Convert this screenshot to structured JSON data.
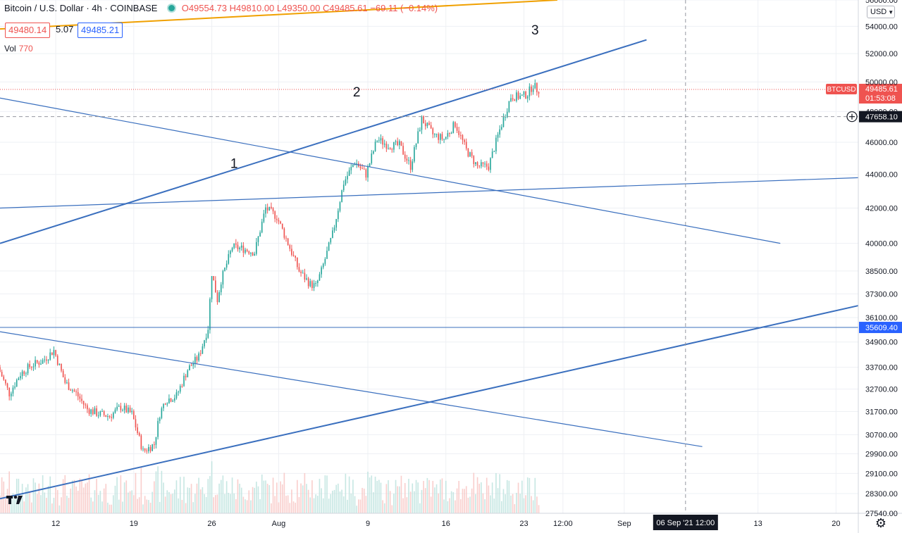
{
  "header": {
    "symbol_title": "Bitcoin / U.S. Dollar · 4h · COINBASE",
    "open": "O49554.73",
    "high": "H49810.00",
    "low": "L49350.00",
    "close": "C49485.61",
    "change": "−69.11 (−0.14%)",
    "bid": "49480.14",
    "spread": "5.07",
    "ask": "49485.21",
    "volume_label": "Vol",
    "volume_value": "770"
  },
  "currency_selector": "USD",
  "icons": {
    "logo": "tradingview-logo-icon",
    "settings": "gear-icon",
    "crosshair_add": "plus-circle-icon"
  },
  "colors": {
    "up": "#26a69a",
    "down": "#ef5350",
    "trendline": "#3a6fbe",
    "orange_line": "#f0a000",
    "price_tag": "#ef5350",
    "horizontal_tag": "#2962ff"
  },
  "annotations": [
    "1",
    "2",
    "3"
  ],
  "price_axis": {
    "ticks": [
      "54000.00",
      "52000.00",
      "50000.00",
      "48000.00",
      "46000.00",
      "44000.00",
      "42000.00",
      "40000.00",
      "38500.00",
      "37300.00",
      "36100.00",
      "34900.00",
      "33700.00",
      "32700.00",
      "31700.00",
      "30700.00",
      "29900.00",
      "29100.00",
      "28300.00",
      "27540.00"
    ],
    "top_partial_tick": "56000.00",
    "last_price_label": "BTCUSD",
    "last_price": "49485.61",
    "countdown": "01:53:08",
    "crosshair_price": "47658.10",
    "horizontal_line_price": "35609.40"
  },
  "time_axis": {
    "ticks": [
      "12",
      "19",
      "26",
      "Aug",
      "9",
      "16",
      "23",
      "12:00",
      "Sep",
      "13",
      "20"
    ],
    "crosshair_label": "06 Sep '21   12:00"
  },
  "chart_data": {
    "type": "candlestick",
    "symbol": "BTCUSD",
    "interval": "4h",
    "exchange": "COINBASE",
    "x_range": [
      "2021-07-07",
      "2021-09-22"
    ],
    "y_scale": "log",
    "ylim": [
      27540,
      56000
    ],
    "grid": true,
    "path_anchors_date_price": [
      [
        "2021-07-07 00:00",
        33700
      ],
      [
        "2021-07-08 00:00",
        32500
      ],
      [
        "2021-07-09 00:00",
        33400
      ],
      [
        "2021-07-10 00:00",
        33800
      ],
      [
        "2021-07-11 00:00",
        34000
      ],
      [
        "2021-07-12 00:00",
        34500
      ],
      [
        "2021-07-13 00:00",
        33000
      ],
      [
        "2021-07-14 00:00",
        32500
      ],
      [
        "2021-07-15 00:00",
        31800
      ],
      [
        "2021-07-16 00:00",
        31600
      ],
      [
        "2021-07-17 00:00",
        31500
      ],
      [
        "2021-07-18 00:00",
        31900
      ],
      [
        "2021-07-19 00:00",
        31600
      ],
      [
        "2021-07-20 00:00",
        30000
      ],
      [
        "2021-07-21 00:00",
        30300
      ],
      [
        "2021-07-21 12:00",
        31600
      ],
      [
        "2021-07-22 00:00",
        32200
      ],
      [
        "2021-07-23 00:00",
        32400
      ],
      [
        "2021-07-24 00:00",
        33600
      ],
      [
        "2021-07-25 00:00",
        34200
      ],
      [
        "2021-07-25 20:00",
        35600
      ],
      [
        "2021-07-26 04:00",
        38400
      ],
      [
        "2021-07-26 16:00",
        37000
      ],
      [
        "2021-07-27 00:00",
        38000
      ],
      [
        "2021-07-28 00:00",
        39800
      ],
      [
        "2021-07-29 00:00",
        39700
      ],
      [
        "2021-07-30 00:00",
        39500
      ],
      [
        "2021-07-31 00:00",
        42000
      ],
      [
        "2021-08-01 00:00",
        41500
      ],
      [
        "2021-08-02 00:00",
        40000
      ],
      [
        "2021-08-03 00:00",
        38500
      ],
      [
        "2021-08-04 00:00",
        37800
      ],
      [
        "2021-08-04 12:00",
        37700
      ],
      [
        "2021-08-05 00:00",
        38500
      ],
      [
        "2021-08-06 00:00",
        40500
      ],
      [
        "2021-08-07 00:00",
        43500
      ],
      [
        "2021-08-08 00:00",
        44800
      ],
      [
        "2021-08-09 00:00",
        44000
      ],
      [
        "2021-08-10 00:00",
        46200
      ],
      [
        "2021-08-11 00:00",
        45800
      ],
      [
        "2021-08-12 00:00",
        45800
      ],
      [
        "2021-08-13 00:00",
        44500
      ],
      [
        "2021-08-14 00:00",
        47500
      ],
      [
        "2021-08-15 00:00",
        46500
      ],
      [
        "2021-08-16 00:00",
        46200
      ],
      [
        "2021-08-17 00:00",
        47200
      ],
      [
        "2021-08-18 00:00",
        45500
      ],
      [
        "2021-08-19 00:00",
        44500
      ],
      [
        "2021-08-20 00:00",
        44500
      ],
      [
        "2021-08-21 00:00",
        46800
      ],
      [
        "2021-08-22 00:00",
        49000
      ],
      [
        "2021-08-23 00:00",
        49000
      ],
      [
        "2021-08-23 12:00",
        49200
      ],
      [
        "2021-08-24 00:00",
        49800
      ],
      [
        "2021-08-24 08:00",
        49485
      ]
    ],
    "drawings": [
      {
        "name": "rising-channel-top",
        "from": [
          "2021-07-07",
          40000
        ],
        "to": [
          "2021-09-03",
          53000
        ]
      },
      {
        "name": "rising-support",
        "from": [
          "2021-07-07",
          28100
        ],
        "to": [
          "2021-09-22",
          36700
        ]
      },
      {
        "name": "flat-resistance",
        "from": [
          "2021-07-07",
          42000
        ],
        "to": [
          "2021-09-22",
          43800
        ]
      },
      {
        "name": "falling-line-upper",
        "from": [
          "2021-07-07",
          48900
        ],
        "to": [
          "2021-09-15",
          40000
        ]
      },
      {
        "name": "falling-line-lower",
        "from": [
          "2021-07-07",
          35400
        ],
        "to": [
          "2021-09-08",
          30200
        ]
      },
      {
        "name": "orange-moving-line",
        "from": [
          "2021-07-07",
          53800
        ],
        "to": [
          "2021-08-26",
          56000
        ]
      }
    ]
  }
}
